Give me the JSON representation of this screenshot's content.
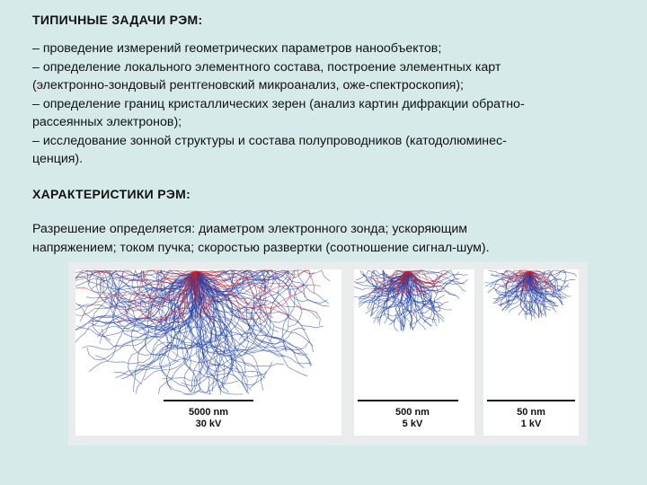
{
  "section1": {
    "heading": "ТИПИЧНЫЕ ЗАДАЧИ РЭМ:",
    "lines": [
      "– проведение измерений геометрических параметров нанообъектов;",
      "– определение локального элементного состава, построение элементных карт",
      "(электронно-зондовый рентгеновский микроанализ, оже-спектроскопия);",
      "– определение границ кристаллических зерен (анализ картин дифракции обратно-",
      "рассеянных электронов);",
      "– исследование зонной структуры и состава полупроводников (катодолюминес-",
      "ценция)."
    ]
  },
  "section2": {
    "heading": "ХАРАКТЕРИСТИКИ РЭМ:",
    "lines": [
      "Разрешение определяется: диаметром электронного зонда; ускоряющим",
      "напряжением; током пучка; скоростью развертки (соотношение сигнал-шум)."
    ]
  },
  "figure": {
    "colors": {
      "primary": "#1f3fa8",
      "backscattered": "#d42020",
      "background": "#ffffff"
    },
    "panels": [
      {
        "scale": "5000 nm",
        "voltage": "30 kV"
      },
      {
        "scale": "500 nm",
        "voltage": "5 kV"
      },
      {
        "scale": "50 nm",
        "voltage": "1 kV"
      }
    ]
  }
}
